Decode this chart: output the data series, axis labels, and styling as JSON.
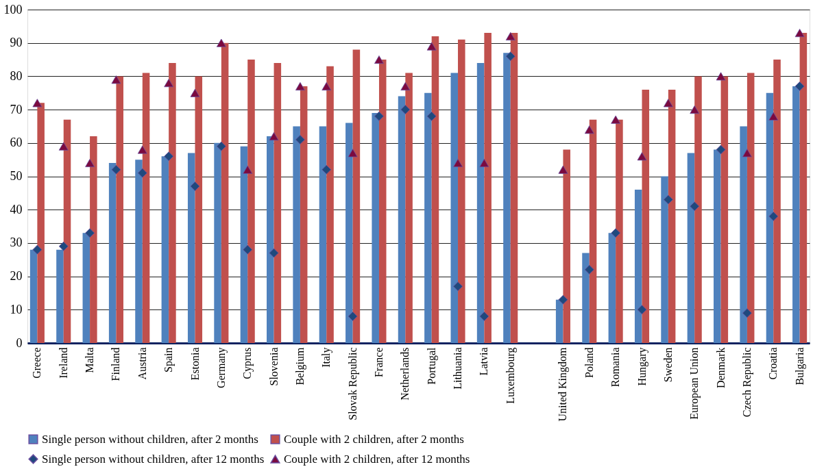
{
  "chart_data": {
    "type": "bar",
    "categories": [
      "Greece",
      "Ireland",
      "Malta",
      "Finland",
      "Austria",
      "Spain",
      "Estonia",
      "Germany",
      "Cyprus",
      "Slovenia",
      "Belgium",
      "Italy",
      "Slovak Republic",
      "France",
      "Netherlands",
      "Portugal",
      "Lithuania",
      "Latvia",
      "Luxembourg",
      null,
      "United Kingdom",
      "Poland",
      "Romania",
      "Hungary",
      "Sweden",
      "European Union",
      "Denmark",
      "Czech Republic",
      "Croatia",
      "Bulgaria"
    ],
    "series": [
      {
        "name": "Single person without children, after 2 months",
        "color": "#4f81bd",
        "values": [
          28,
          28,
          33,
          54,
          55,
          56,
          57,
          60,
          59,
          62,
          65,
          65,
          66,
          69,
          74,
          75,
          81,
          84,
          87,
          null,
          13,
          27,
          33,
          46,
          50,
          57,
          58,
          65,
          75,
          77
        ]
      },
      {
        "name": "Couple with 2 children, after 2 months",
        "color": "#c0504d",
        "values": [
          72,
          67,
          62,
          80,
          81,
          84,
          80,
          90,
          85,
          84,
          77,
          83,
          88,
          85,
          81,
          92,
          91,
          93,
          93,
          null,
          58,
          67,
          67,
          76,
          76,
          80,
          80,
          81,
          85,
          93
        ]
      },
      {
        "name": "Single person without children, after 12 months",
        "type": "scatter",
        "marker": "diamond",
        "color": "#1f497d",
        "values": [
          28,
          29,
          33,
          52,
          51,
          56,
          47,
          59,
          28,
          27,
          61,
          52,
          8,
          68,
          70,
          68,
          17,
          8,
          86,
          null,
          13,
          22,
          33,
          10,
          43,
          41,
          58,
          9,
          38,
          77
        ]
      },
      {
        "name": "Couple with 2 children, after 12 months",
        "type": "scatter",
        "marker": "triangle",
        "color": "#7b0a3f",
        "values": [
          72,
          59,
          54,
          79,
          58,
          78,
          75,
          90,
          52,
          62,
          77,
          77,
          57,
          85,
          77,
          89,
          54,
          54,
          92,
          null,
          52,
          64,
          67,
          56,
          72,
          70,
          80,
          57,
          68,
          93
        ]
      }
    ],
    "ylim": [
      0,
      100
    ],
    "yticks": [
      0,
      10,
      20,
      30,
      40,
      50,
      60,
      70,
      80,
      90,
      100
    ],
    "grid": "y",
    "legend": "bottom"
  }
}
